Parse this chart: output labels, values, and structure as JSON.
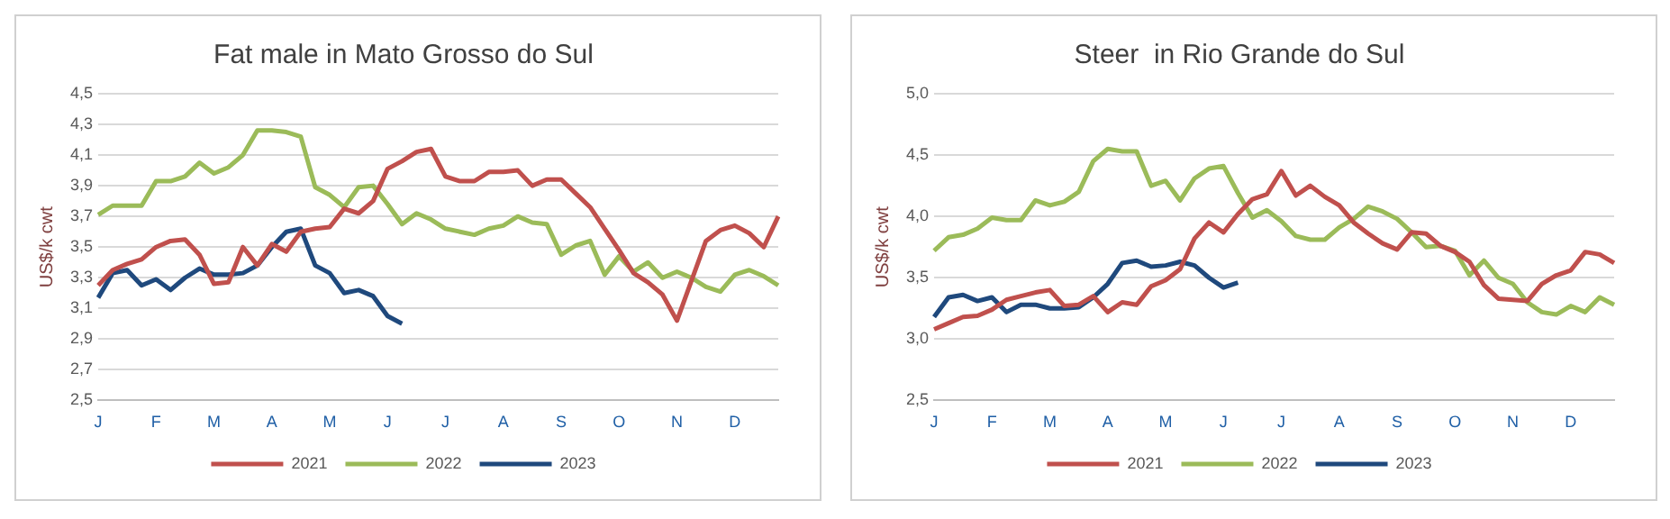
{
  "chart_data": [
    {
      "type": "line",
      "title": "Fat male in Mato Grosso do Sul",
      "ylabel": "US$/k cwt",
      "categories": [
        "J",
        null,
        null,
        null,
        "F",
        null,
        null,
        null,
        "M",
        null,
        null,
        null,
        "A",
        null,
        null,
        null,
        "M",
        null,
        null,
        null,
        "J",
        null,
        null,
        null,
        "J",
        null,
        null,
        null,
        "A",
        null,
        null,
        null,
        "S",
        null,
        null,
        null,
        "O",
        null,
        null,
        null,
        "N",
        null,
        null,
        null,
        "D",
        null,
        null,
        null
      ],
      "ylim": [
        2.5,
        4.5
      ],
      "yticks": [
        {
          "value": 2.5,
          "label": "2,5"
        },
        {
          "value": 2.7,
          "label": "2,7"
        },
        {
          "value": 2.9,
          "label": "2,9"
        },
        {
          "value": 3.1,
          "label": "3,1"
        },
        {
          "value": 3.3,
          "label": "3,3"
        },
        {
          "value": 3.5,
          "label": "3,5"
        },
        {
          "value": 3.7,
          "label": "3,7"
        },
        {
          "value": 3.9,
          "label": "3,9"
        },
        {
          "value": 4.1,
          "label": "4,1"
        },
        {
          "value": 4.3,
          "label": "4,3"
        },
        {
          "value": 4.5,
          "label": "4,5"
        }
      ],
      "grid": "y",
      "legend": "bottom",
      "marker": "none",
      "line_style": "solid",
      "series": [
        {
          "name": "2021",
          "color": "#c0504d",
          "values": [
            3.25,
            3.35,
            3.39,
            3.42,
            3.5,
            3.54,
            3.55,
            3.45,
            3.26,
            3.27,
            3.5,
            3.38,
            3.52,
            3.47,
            3.6,
            3.62,
            3.63,
            3.75,
            3.72,
            3.8,
            4.01,
            4.06,
            4.12,
            4.14,
            3.96,
            3.93,
            3.93,
            3.99,
            3.99,
            4.0,
            3.9,
            3.94,
            3.94,
            3.85,
            3.76,
            3.62,
            3.48,
            3.33,
            3.27,
            3.19,
            3.02,
            3.28,
            3.54,
            3.61,
            3.64,
            3.59,
            3.5,
            3.7
          ]
        },
        {
          "name": "2022",
          "color": "#9bbb59",
          "values": [
            3.71,
            3.77,
            3.77,
            3.77,
            3.93,
            3.93,
            3.96,
            4.05,
            3.98,
            4.02,
            4.1,
            4.26,
            4.26,
            4.25,
            4.22,
            3.89,
            3.84,
            3.76,
            3.89,
            3.9,
            3.78,
            3.65,
            3.72,
            3.68,
            3.62,
            3.6,
            3.58,
            3.62,
            3.64,
            3.7,
            3.66,
            3.65,
            3.45,
            3.51,
            3.54,
            3.32,
            3.44,
            3.34,
            3.4,
            3.3,
            3.34,
            3.3,
            3.24,
            3.21,
            3.32,
            3.35,
            3.31,
            3.25
          ]
        },
        {
          "name": "2023",
          "color": "#1f497d",
          "values": [
            3.17,
            3.33,
            3.35,
            3.25,
            3.29,
            3.22,
            3.3,
            3.36,
            3.32,
            3.32,
            3.33,
            3.38,
            3.5,
            3.6,
            3.62,
            3.38,
            3.33,
            3.2,
            3.22,
            3.18,
            3.05,
            3.0,
            null,
            null,
            null,
            null,
            null,
            null,
            null,
            null,
            null,
            null,
            null,
            null,
            null,
            null,
            null,
            null,
            null,
            null,
            null,
            null,
            null,
            null,
            null,
            null,
            null,
            null
          ]
        }
      ]
    },
    {
      "type": "line",
      "title": "Steer  in Rio Grande do Sul",
      "ylabel": "US$/k cwt",
      "categories": [
        "J",
        null,
        null,
        null,
        "F",
        null,
        null,
        null,
        "M",
        null,
        null,
        null,
        "A",
        null,
        null,
        null,
        "M",
        null,
        null,
        null,
        "J",
        null,
        null,
        null,
        "J",
        null,
        null,
        null,
        "A",
        null,
        null,
        null,
        "S",
        null,
        null,
        null,
        "O",
        null,
        null,
        null,
        "N",
        null,
        null,
        null,
        "D",
        null,
        null,
        null
      ],
      "ylim": [
        2.5,
        5.0
      ],
      "yticks": [
        {
          "value": 2.5,
          "label": "2,5"
        },
        {
          "value": 3.0,
          "label": "3,0"
        },
        {
          "value": 3.5,
          "label": "3,5"
        },
        {
          "value": 4.0,
          "label": "4,0"
        },
        {
          "value": 4.5,
          "label": "4,5"
        },
        {
          "value": 5.0,
          "label": "5,0"
        }
      ],
      "grid": "y",
      "legend": "bottom",
      "marker": "none",
      "line_style": "solid",
      "series": [
        {
          "name": "2021",
          "color": "#c0504d",
          "values": [
            3.08,
            3.13,
            3.18,
            3.19,
            3.24,
            3.32,
            3.35,
            3.38,
            3.4,
            3.27,
            3.28,
            3.35,
            3.22,
            3.3,
            3.28,
            3.43,
            3.48,
            3.57,
            3.82,
            3.95,
            3.87,
            4.02,
            4.14,
            4.18,
            4.37,
            4.17,
            4.25,
            4.16,
            4.09,
            3.95,
            3.86,
            3.78,
            3.73,
            3.87,
            3.86,
            3.76,
            3.71,
            3.63,
            3.44,
            3.33,
            3.32,
            3.31,
            3.45,
            3.52,
            3.56,
            3.71,
            3.69,
            3.62
          ]
        },
        {
          "name": "2022",
          "color": "#9bbb59",
          "values": [
            3.72,
            3.83,
            3.85,
            3.9,
            3.99,
            3.97,
            3.97,
            4.13,
            4.09,
            4.12,
            4.2,
            4.45,
            4.55,
            4.53,
            4.53,
            4.25,
            4.29,
            4.13,
            4.31,
            4.39,
            4.41,
            4.19,
            3.99,
            4.05,
            3.96,
            3.84,
            3.81,
            3.81,
            3.91,
            3.98,
            4.08,
            4.04,
            3.98,
            3.87,
            3.75,
            3.76,
            3.72,
            3.52,
            3.64,
            3.5,
            3.45,
            3.3,
            3.22,
            3.2,
            3.27,
            3.22,
            3.34,
            3.28
          ]
        },
        {
          "name": "2023",
          "color": "#1f497d",
          "values": [
            3.18,
            3.34,
            3.36,
            3.31,
            3.34,
            3.22,
            3.28,
            3.28,
            3.25,
            3.25,
            3.26,
            3.34,
            3.45,
            3.62,
            3.64,
            3.59,
            3.6,
            3.63,
            3.6,
            3.5,
            3.42,
            3.46,
            null,
            null,
            null,
            null,
            null,
            null,
            null,
            null,
            null,
            null,
            null,
            null,
            null,
            null,
            null,
            null,
            null,
            null,
            null,
            null,
            null,
            null,
            null,
            null,
            null,
            null
          ]
        }
      ]
    }
  ]
}
